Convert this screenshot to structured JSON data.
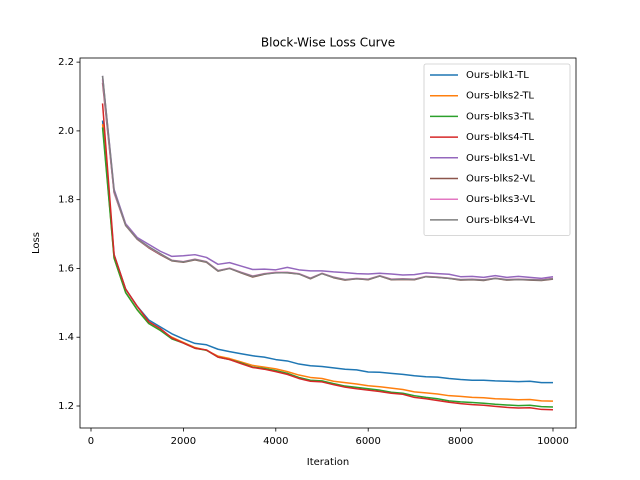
{
  "chart_data": {
    "type": "line",
    "title": "Block-Wise Loss Curve",
    "x_label": "Iteration",
    "y_label": "Loss",
    "x": [
      250,
      500,
      750,
      1000,
      1250,
      1500,
      1750,
      2000,
      2250,
      2500,
      2750,
      3000,
      3250,
      3500,
      3750,
      4000,
      4250,
      4500,
      4750,
      5000,
      5250,
      5500,
      5750,
      6000,
      6250,
      6500,
      6750,
      7000,
      7250,
      7500,
      7750,
      8000,
      8250,
      8500,
      8750,
      9000,
      9250,
      9500,
      9750,
      10000
    ],
    "xlim": [
      -238,
      10498
    ],
    "xticks": [
      0,
      2000,
      4000,
      6000,
      8000,
      10000
    ],
    "ylim": [
      1.136,
      2.212
    ],
    "yticks": [
      {
        "value": 1.2,
        "label": "1.2"
      },
      {
        "value": 1.4,
        "label": "1.4"
      },
      {
        "value": 1.6,
        "label": "1.6"
      },
      {
        "value": 1.8,
        "label": "1.8"
      },
      {
        "value": 2.0,
        "label": "2.0"
      },
      {
        "value": 2.2,
        "label": "2.2"
      }
    ],
    "legend": "upper right",
    "grid": false,
    "series": [
      {
        "name": "Ours-blk1-TL",
        "color": "#1f77b4",
        "values": [
          2.03,
          1.64,
          1.54,
          1.49,
          1.45,
          1.43,
          1.41,
          1.395,
          1.382,
          1.378,
          1.365,
          1.358,
          1.352,
          1.346,
          1.342,
          1.335,
          1.331,
          1.322,
          1.317,
          1.315,
          1.311,
          1.307,
          1.305,
          1.299,
          1.298,
          1.295,
          1.292,
          1.288,
          1.285,
          1.284,
          1.28,
          1.277,
          1.275,
          1.275,
          1.273,
          1.272,
          1.271,
          1.272,
          1.268,
          1.268
        ]
      },
      {
        "name": "Ours-blks2-TL",
        "color": "#ff7f0e",
        "values": [
          2.02,
          1.63,
          1.53,
          1.48,
          1.44,
          1.42,
          1.4,
          1.385,
          1.37,
          1.362,
          1.345,
          1.338,
          1.328,
          1.318,
          1.313,
          1.308,
          1.3,
          1.29,
          1.283,
          1.28,
          1.272,
          1.268,
          1.264,
          1.259,
          1.256,
          1.252,
          1.248,
          1.241,
          1.238,
          1.235,
          1.23,
          1.228,
          1.225,
          1.224,
          1.221,
          1.22,
          1.218,
          1.219,
          1.215,
          1.214
        ]
      },
      {
        "name": "Ours-blks3-TL",
        "color": "#2ca02c",
        "values": [
          2.01,
          1.63,
          1.53,
          1.48,
          1.44,
          1.42,
          1.395,
          1.383,
          1.368,
          1.362,
          1.342,
          1.335,
          1.325,
          1.313,
          1.309,
          1.303,
          1.295,
          1.283,
          1.275,
          1.273,
          1.265,
          1.258,
          1.254,
          1.25,
          1.246,
          1.24,
          1.237,
          1.23,
          1.225,
          1.221,
          1.215,
          1.212,
          1.21,
          1.208,
          1.205,
          1.203,
          1.201,
          1.202,
          1.198,
          1.197
        ]
      },
      {
        "name": "Ours-blks4-TL",
        "color": "#d62728",
        "values": [
          2.08,
          1.64,
          1.54,
          1.49,
          1.445,
          1.425,
          1.398,
          1.383,
          1.368,
          1.363,
          1.342,
          1.335,
          1.323,
          1.312,
          1.307,
          1.3,
          1.292,
          1.28,
          1.272,
          1.27,
          1.262,
          1.255,
          1.25,
          1.246,
          1.242,
          1.237,
          1.234,
          1.225,
          1.221,
          1.216,
          1.211,
          1.207,
          1.204,
          1.202,
          1.199,
          1.196,
          1.194,
          1.195,
          1.19,
          1.189
        ]
      },
      {
        "name": "Ours-blks1-VL",
        "color": "#9467bd",
        "values": [
          2.16,
          1.83,
          1.73,
          1.69,
          1.67,
          1.65,
          1.635,
          1.637,
          1.64,
          1.632,
          1.612,
          1.617,
          1.607,
          1.597,
          1.598,
          1.596,
          1.603,
          1.596,
          1.593,
          1.593,
          1.59,
          1.588,
          1.585,
          1.584,
          1.586,
          1.584,
          1.581,
          1.582,
          1.587,
          1.585,
          1.583,
          1.576,
          1.577,
          1.574,
          1.579,
          1.574,
          1.577,
          1.574,
          1.571,
          1.576
        ]
      },
      {
        "name": "Ours-blks2-VL",
        "color": "#8c564b",
        "values": [
          2.14,
          1.82,
          1.725,
          1.685,
          1.66,
          1.64,
          1.622,
          1.618,
          1.625,
          1.618,
          1.592,
          1.6,
          1.587,
          1.575,
          1.583,
          1.588,
          1.587,
          1.584,
          1.57,
          1.585,
          1.573,
          1.566,
          1.57,
          1.567,
          1.578,
          1.567,
          1.568,
          1.567,
          1.576,
          1.574,
          1.571,
          1.566,
          1.567,
          1.565,
          1.571,
          1.566,
          1.568,
          1.566,
          1.565,
          1.569
        ]
      },
      {
        "name": "Ours-blks3-VL",
        "color": "#e377c2",
        "values": [
          2.15,
          1.82,
          1.727,
          1.686,
          1.662,
          1.642,
          1.624,
          1.62,
          1.627,
          1.62,
          1.594,
          1.601,
          1.589,
          1.578,
          1.585,
          1.589,
          1.589,
          1.585,
          1.572,
          1.586,
          1.575,
          1.568,
          1.571,
          1.569,
          1.579,
          1.569,
          1.57,
          1.569,
          1.577,
          1.575,
          1.572,
          1.568,
          1.569,
          1.567,
          1.572,
          1.568,
          1.569,
          1.568,
          1.567,
          1.571
        ]
      },
      {
        "name": "Ours-blks4-VL",
        "color": "#7f7f7f",
        "values": [
          2.16,
          1.825,
          1.726,
          1.686,
          1.663,
          1.643,
          1.623,
          1.619,
          1.626,
          1.619,
          1.593,
          1.6,
          1.588,
          1.577,
          1.584,
          1.587,
          1.588,
          1.584,
          1.571,
          1.585,
          1.574,
          1.567,
          1.57,
          1.568,
          1.578,
          1.568,
          1.569,
          1.568,
          1.576,
          1.574,
          1.571,
          1.567,
          1.568,
          1.566,
          1.571,
          1.567,
          1.568,
          1.567,
          1.566,
          1.57
        ]
      }
    ]
  }
}
